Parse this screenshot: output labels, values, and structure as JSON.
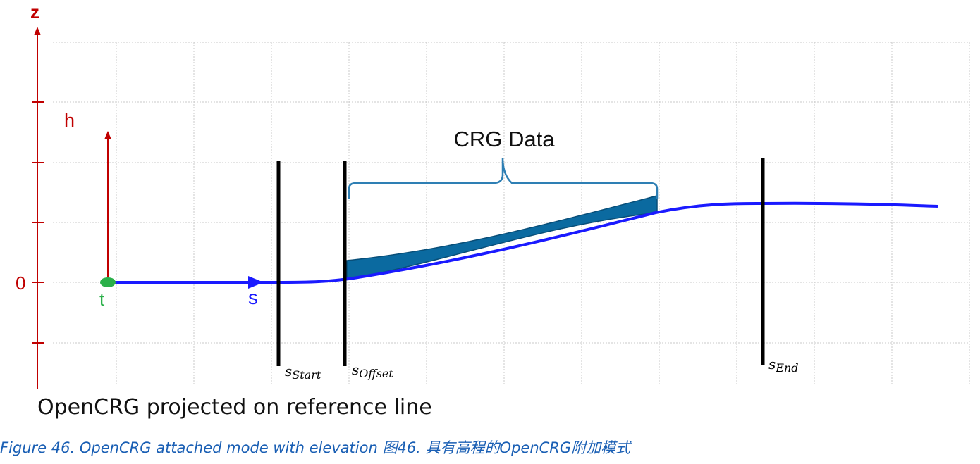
{
  "labels": {
    "z_axis": "z",
    "h_axis": "h",
    "zero": "0",
    "t": "t",
    "s": "s",
    "crg_data": "CRG Data",
    "s_start_base": "s",
    "s_start_sub": "Start",
    "s_offset_base": "s",
    "s_offset_sub": "Offset",
    "s_end_base": "s",
    "s_end_sub": "End",
    "bottom_label": "OpenCRG projected on reference line"
  },
  "caption": "Figure 46. OpenCRG attached mode with elevation 图46. 具有高程的OpenCRG附加模式",
  "colors": {
    "axis": "#c00000",
    "reference_line": "#1a1aff",
    "crg_fill": "#0b6aa0",
    "crg_stroke": "#084e78",
    "brace": "#2e7fb4",
    "marker": "#000000",
    "origin": "#2bb04a",
    "grid": "#c8c8c8"
  }
}
